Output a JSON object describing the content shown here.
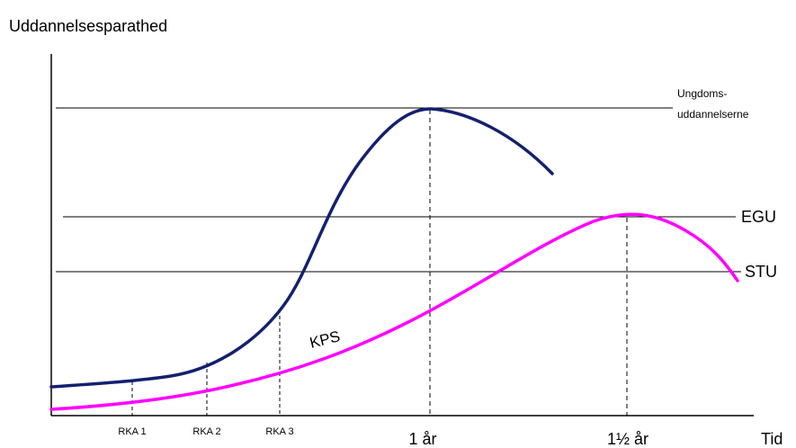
{
  "title": "Uddannelsesparathed",
  "x_axis_label": "Tid",
  "reference_lines": {
    "ungdom_line1": "Ungdoms-",
    "ungdom_line2": "uddannelserne",
    "egu": "EGU",
    "stu": "STU"
  },
  "curve_labels": {
    "kps": "KPS"
  },
  "markers": {
    "rka1": "RKA 1",
    "rka2": "RKA 2",
    "rka3": "RKA 3",
    "year1": "1 år",
    "year1_5": "1½ år"
  },
  "colors": {
    "upper_curve": "#14206e",
    "kps_curve": "#ff00ff",
    "lines": "#000000",
    "background": "#ffffff"
  }
}
